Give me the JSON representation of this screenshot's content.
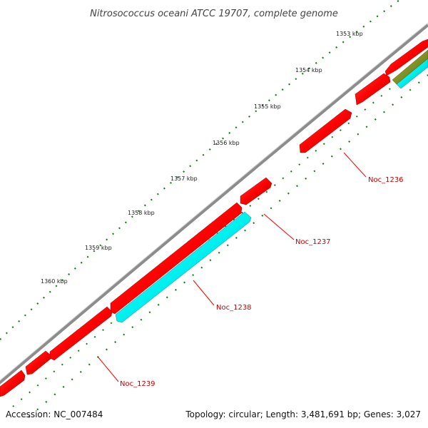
{
  "title": "Nitrosococcus oceani ATCC 19707, complete genome",
  "colors": {
    "backbone": "#8c8c8c",
    "gene_forward": "#ff0000",
    "gene_forward_shade": "#b00000",
    "gene_reverse": "#00f0f0",
    "gene_reverse_shade": "#00a8a8",
    "gene_other": "#7a8c1e",
    "dots": "#1a7a1a",
    "label": "#cc0000"
  },
  "scale_ticks": [
    "1353 kbp",
    "1354 kbp",
    "1355 kbp",
    "1356 kbp",
    "1357 kbp",
    "1358 kbp",
    "1359 kbp",
    "1360 kbp"
  ],
  "gene_labels": [
    "Noc_1236",
    "Noc_1237",
    "Noc_1238",
    "Noc_1239"
  ],
  "footer": {
    "accession": "Accession: NC_007484",
    "summary": "Topology: circular; Length: 3,481,691 bp; Genes: 3,027"
  }
}
